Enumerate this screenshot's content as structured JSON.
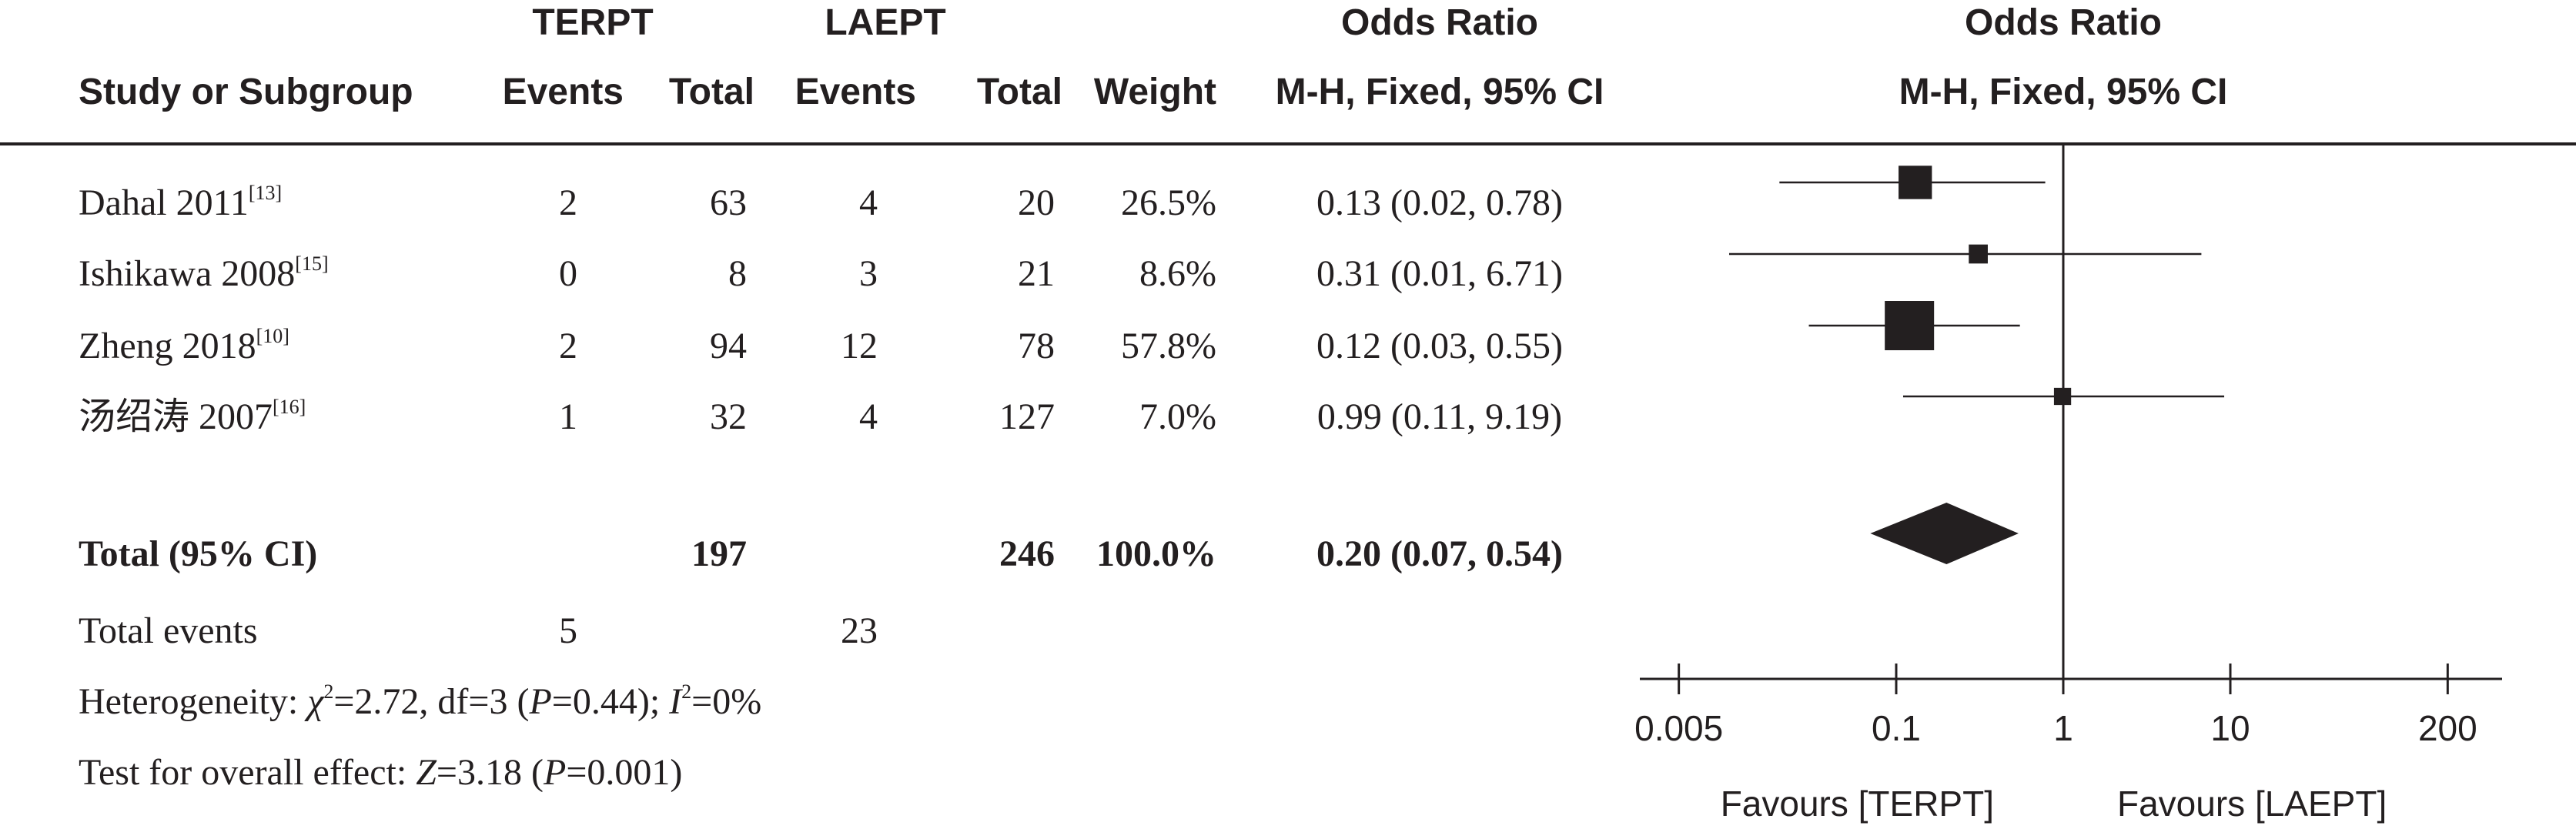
{
  "header": {
    "group1": "TERPT",
    "group2": "LAEPT",
    "odds_ratio_col": "Odds Ratio",
    "odds_ratio_plot": "Odds Ratio",
    "study_col": "Study or Subgroup",
    "events1": "Events",
    "total1": "Total",
    "events2": "Events",
    "total2": "Total",
    "weight": "Weight",
    "method_col": "M-H, Fixed, 95% CI",
    "method_plot": "M-H, Fixed, 95% CI"
  },
  "studies": [
    {
      "name": "Dahal 2011",
      "ref": "[13]",
      "events1": "2",
      "total1": "63",
      "events2": "4",
      "total2": "20",
      "weight": "26.5%",
      "ci": "0.13 (0.02, 0.78)"
    },
    {
      "name": "Ishikawa 2008",
      "ref": "[15]",
      "events1": "0",
      "total1": "8",
      "events2": "3",
      "total2": "21",
      "weight": "8.6%",
      "ci": "0.31 (0.01, 6.71)"
    },
    {
      "name": "Zheng 2018",
      "ref": "[10]",
      "events1": "2",
      "total1": "94",
      "events2": "12",
      "total2": "78",
      "weight": "57.8%",
      "ci": "0.12 (0.03, 0.55)"
    },
    {
      "name": "汤绍涛 2007",
      "ref": "[16]",
      "events1": "1",
      "total1": "32",
      "events2": "4",
      "total2": "127",
      "weight": "7.0%",
      "ci": "0.99 (0.11, 9.19)"
    }
  ],
  "total": {
    "label": "Total (95% CI)",
    "total1": "197",
    "total2": "246",
    "weight": "100.0%",
    "ci": "0.20 (0.07, 0.54)"
  },
  "total_events": {
    "label": "Total events",
    "events1": "5",
    "events2": "23"
  },
  "heterogeneity": {
    "prefix": "Heterogeneity: ",
    "chi": "χ",
    "chi_sup": "2",
    "chi_value": "=2.72, df=3 (",
    "p": "P",
    "p_value": "=0.44); ",
    "i": "I",
    "i_sup": "2",
    "i_value": "=0%"
  },
  "overall_effect": {
    "prefix": "Test for overall effect: ",
    "z": "Z",
    "z_value": "=3.18 (",
    "p": "P",
    "p_value": "=0.001)"
  },
  "chart_data": {
    "type": "scatter",
    "scale": "log",
    "xlim": [
      0.005,
      200
    ],
    "ticks": [
      "0.005",
      "0.1",
      "1",
      "10",
      "200"
    ],
    "tick_values": [
      0.005,
      0.1,
      1,
      10,
      200
    ],
    "reference_line": 1,
    "favours_left": "Favours [TERPT]",
    "favours_right": "Favours [LAEPT]",
    "points": [
      {
        "or": 0.13,
        "lower": 0.02,
        "upper": 0.78,
        "weight": 26.5
      },
      {
        "or": 0.31,
        "lower": 0.01,
        "upper": 6.71,
        "weight": 8.6
      },
      {
        "or": 0.12,
        "lower": 0.03,
        "upper": 0.55,
        "weight": 57.8
      },
      {
        "or": 0.99,
        "lower": 0.11,
        "upper": 9.19,
        "weight": 7.0
      }
    ],
    "summary": {
      "or": 0.2,
      "lower": 0.07,
      "upper": 0.54
    }
  }
}
